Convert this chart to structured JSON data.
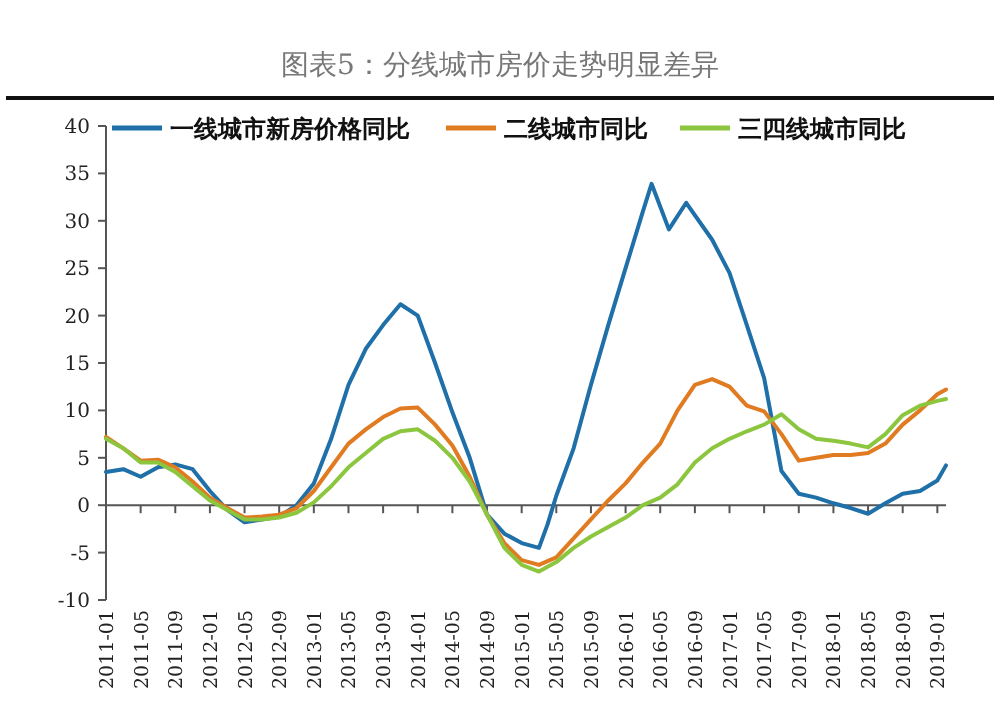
{
  "chart_data": {
    "type": "line",
    "title": "图表5：分线城市房价走势明显差异",
    "x": [
      "2011-01",
      "2011-03",
      "2011-05",
      "2011-07",
      "2011-09",
      "2011-11",
      "2012-01",
      "2012-03",
      "2012-05",
      "2012-07",
      "2012-09",
      "2012-11",
      "2013-01",
      "2013-03",
      "2013-05",
      "2013-07",
      "2013-09",
      "2013-11",
      "2014-01",
      "2014-03",
      "2014-05",
      "2014-07",
      "2014-09",
      "2014-11",
      "2015-01",
      "2015-03",
      "2015-05",
      "2015-07",
      "2015-09",
      "2015-11",
      "2016-01",
      "2016-03",
      "2016-05",
      "2016-07",
      "2016-09",
      "2016-11",
      "2017-01",
      "2017-03",
      "2017-05",
      "2017-07",
      "2017-09",
      "2017-11",
      "2018-01",
      "2018-03",
      "2018-05",
      "2018-07",
      "2018-09",
      "2018-11",
      "2019-01",
      "2019-02"
    ],
    "series": [
      {
        "name": "一线城市新房价格同比",
        "color": "#1f6fa8",
        "x": [
          "2011-01",
          "2011-03",
          "2011-05",
          "2011-07",
          "2011-09",
          "2011-11",
          "2012-01",
          "2012-03",
          "2012-05",
          "2012-07",
          "2012-09",
          "2012-11",
          "2013-01",
          "2013-03",
          "2013-05",
          "2013-07",
          "2013-09",
          "2013-11",
          "2014-01",
          "2014-03",
          "2014-05",
          "2014-07",
          "2014-09",
          "2014-11",
          "2015-01",
          "2015-03",
          "2015-04",
          "2015-05",
          "2015-07",
          "2015-09",
          "2015-11",
          "2016-01",
          "2016-03",
          "2016-04",
          "2016-06",
          "2016-08",
          "2016-11",
          "2017-01",
          "2017-03",
          "2017-05",
          "2017-07",
          "2017-09",
          "2017-11",
          "2018-01",
          "2018-03",
          "2018-05",
          "2018-07",
          "2018-09",
          "2018-11",
          "2019-01",
          "2019-02"
        ],
        "values": [
          3.5,
          3.8,
          3.0,
          4.0,
          4.3,
          3.8,
          1.5,
          -0.5,
          -1.8,
          -1.5,
          -1.2,
          0,
          2.3,
          7,
          12.7,
          16.5,
          19,
          21.2,
          20,
          15,
          9.8,
          5,
          -1,
          -3,
          -4,
          -4.5,
          -2,
          1,
          6,
          12.7,
          19,
          25,
          31,
          33.9,
          29.1,
          31.9,
          28,
          24.5,
          19,
          13.4,
          3.6,
          1.2,
          0.8,
          0.2,
          -0.3,
          -0.9,
          0.2,
          1.2,
          1.5,
          2.6,
          4.2
        ]
      },
      {
        "name": "二线城市同比",
        "color": "#e07b22",
        "values": [
          7.2,
          6,
          4.7,
          4.8,
          4,
          2.5,
          0.8,
          -0.3,
          -1.3,
          -1.2,
          -1,
          -0.3,
          1.5,
          4,
          6.5,
          8,
          9.3,
          10.2,
          10.3,
          8.5,
          6.3,
          3,
          -1,
          -4,
          -5.8,
          -6.3,
          -5.5,
          -3.5,
          -1.5,
          0.5,
          2.3,
          4.5,
          6.5,
          10,
          12.7,
          13.3,
          12.5,
          10.5,
          9.9,
          7.5,
          4.7,
          5,
          5.3,
          5.3,
          5.5,
          6.5,
          8.5,
          10,
          11.7,
          12.2
        ]
      },
      {
        "name": "三四线城市同比",
        "color": "#8cc63f",
        "values": [
          7,
          6,
          4.5,
          4.5,
          3.5,
          2,
          0.5,
          -0.5,
          -1.5,
          -1.5,
          -1.3,
          -0.8,
          0.3,
          2,
          4,
          5.5,
          7,
          7.8,
          8,
          6.8,
          5,
          2.5,
          -1,
          -4.5,
          -6.3,
          -7,
          -6,
          -4.5,
          -3.3,
          -2.3,
          -1.3,
          0,
          0.8,
          2.2,
          4.5,
          6,
          7,
          7.8,
          8.5,
          9.6,
          8,
          7,
          6.8,
          6.5,
          6.1,
          7.5,
          9.5,
          10.5,
          11,
          11.2
        ]
      }
    ],
    "xlim": [
      "2011-01",
      "2019-02"
    ],
    "xticks": [
      "2011-01",
      "2011-05",
      "2011-09",
      "2012-01",
      "2012-05",
      "2012-09",
      "2013-01",
      "2013-05",
      "2013-09",
      "2014-01",
      "2014-05",
      "2014-09",
      "2015-01",
      "2015-05",
      "2015-09",
      "2016-01",
      "2016-05",
      "2016-09",
      "2017-01",
      "2017-05",
      "2017-09",
      "2018-01",
      "2018-05",
      "2018-09",
      "2019-01"
    ],
    "ylim": [
      -10,
      40
    ],
    "yticks": [
      -10,
      -5,
      0,
      5,
      10,
      15,
      20,
      25,
      30,
      35,
      40
    ],
    "legend": "top",
    "marker": "none",
    "line_style": "solid"
  }
}
